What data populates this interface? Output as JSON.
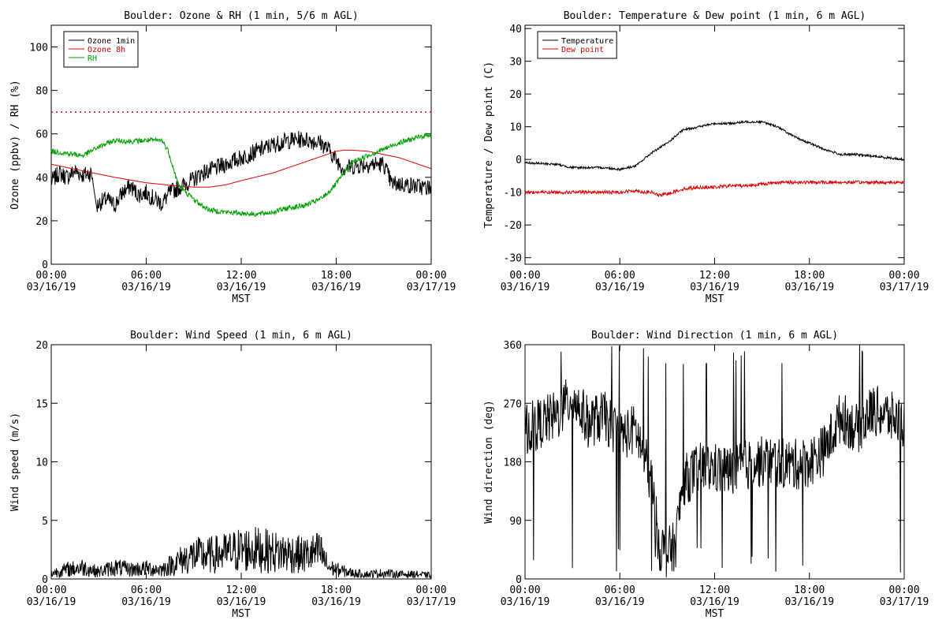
{
  "chart_data": [
    {
      "type": "line",
      "title": "Boulder: Ozone & RH (1 min, 5/6 m AGL)",
      "xlabel": "MST",
      "ylabel": "Ozone (ppbv) / RH (%)",
      "xlim": [
        "00:00 03/16/19",
        "00:00 03/17/19"
      ],
      "ylim": [
        0,
        110
      ],
      "y_ticks": [
        "0",
        "20",
        "40",
        "60",
        "80",
        "100"
      ],
      "x_ticks": [
        {
          "time": "00:00",
          "date": "03/16/19"
        },
        {
          "time": "06:00",
          "date": "03/16/19"
        },
        {
          "time": "12:00",
          "date": "03/16/19"
        },
        {
          "time": "18:00",
          "date": "03/16/19"
        },
        {
          "time": "00:00",
          "date": "03/17/19"
        }
      ],
      "legend": "top-left",
      "reference_line": {
        "y": 70,
        "color": "#dd0000",
        "style": "dotted"
      },
      "series": [
        {
          "name": "Ozone 1min",
          "color": "#000000",
          "points": [
            [
              0,
              38
            ],
            [
              0.5,
              42
            ],
            [
              1,
              40
            ],
            [
              1.5,
              43
            ],
            [
              2,
              41
            ],
            [
              2.5,
              42
            ],
            [
              2.7,
              38
            ],
            [
              2.8,
              25
            ],
            [
              3,
              28
            ],
            [
              3.5,
              30
            ],
            [
              4,
              27
            ],
            [
              4.5,
              33
            ],
            [
              5,
              36
            ],
            [
              5.5,
              32
            ],
            [
              6,
              33
            ],
            [
              6.5,
              30
            ],
            [
              7,
              28
            ],
            [
              7.5,
              33
            ],
            [
              8,
              35
            ],
            [
              8.5,
              37
            ],
            [
              9,
              39
            ],
            [
              9.5,
              42
            ],
            [
              10,
              43
            ],
            [
              11,
              46
            ],
            [
              12,
              49
            ],
            [
              13,
              52
            ],
            [
              14,
              55
            ],
            [
              15,
              57
            ],
            [
              16,
              57.5
            ],
            [
              17,
              56
            ],
            [
              17.5,
              53
            ],
            [
              18,
              48
            ],
            [
              18.5,
              44
            ],
            [
              19,
              45
            ],
            [
              20,
              46
            ],
            [
              21,
              46
            ],
            [
              21.5,
              37
            ],
            [
              22,
              37
            ],
            [
              23,
              36
            ],
            [
              24,
              35
            ]
          ]
        },
        {
          "name": "Ozone 8h",
          "color": "#dd0000",
          "points": [
            [
              0,
              46
            ],
            [
              2,
              43
            ],
            [
              4,
              40
            ],
            [
              6,
              37.5
            ],
            [
              8,
              36
            ],
            [
              9,
              35.5
            ],
            [
              10,
              35.5
            ],
            [
              11,
              36.5
            ],
            [
              12,
              38.5
            ],
            [
              14,
              42
            ],
            [
              16,
              47
            ],
            [
              18,
              52
            ],
            [
              18.5,
              52.5
            ],
            [
              19,
              52.5
            ],
            [
              20,
              52
            ],
            [
              22,
              49
            ],
            [
              24,
              44
            ]
          ]
        },
        {
          "name": "RH",
          "color": "#00a000",
          "points": [
            [
              0,
              52
            ],
            [
              1,
              51
            ],
            [
              2,
              50
            ],
            [
              3,
              54
            ],
            [
              4,
              57
            ],
            [
              5,
              56.5
            ],
            [
              6,
              57
            ],
            [
              7,
              57
            ],
            [
              7.4,
              52
            ],
            [
              7.8,
              42
            ],
            [
              8,
              37
            ],
            [
              8.5,
              33
            ],
            [
              9,
              30
            ],
            [
              9.5,
              27
            ],
            [
              10,
              25
            ],
            [
              11,
              24
            ],
            [
              12,
              23.5
            ],
            [
              13,
              23
            ],
            [
              14,
              24
            ],
            [
              15,
              26
            ],
            [
              16,
              27
            ],
            [
              17,
              30
            ],
            [
              17.5,
              33
            ],
            [
              18,
              37
            ],
            [
              18.5,
              42
            ],
            [
              19,
              47
            ],
            [
              20,
              50
            ],
            [
              21,
              53
            ],
            [
              22,
              56
            ],
            [
              23,
              58
            ],
            [
              24,
              60
            ]
          ]
        }
      ]
    },
    {
      "type": "line",
      "title": "Boulder: Temperature & Dew point (1 min, 6 m AGL)",
      "xlabel": "MST",
      "ylabel": "Temperature / Dew point (C)",
      "xlim": [
        "00:00 03/16/19",
        "00:00 03/17/19"
      ],
      "ylim": [
        -32,
        41
      ],
      "y_ticks": [
        "-30",
        "-20",
        "-10",
        "0",
        "10",
        "20",
        "30",
        "40"
      ],
      "x_ticks": [
        {
          "time": "00:00",
          "date": "03/16/19"
        },
        {
          "time": "06:00",
          "date": "03/16/19"
        },
        {
          "time": "12:00",
          "date": "03/16/19"
        },
        {
          "time": "18:00",
          "date": "03/16/19"
        },
        {
          "time": "00:00",
          "date": "03/17/19"
        }
      ],
      "legend": "top-left",
      "series": [
        {
          "name": "Temperature",
          "color": "#000000",
          "points": [
            [
              0,
              -1
            ],
            [
              2,
              -1.5
            ],
            [
              3,
              -2.5
            ],
            [
              4,
              -2.5
            ],
            [
              5,
              -2.5
            ],
            [
              6,
              -3
            ],
            [
              7,
              -2
            ],
            [
              7.5,
              0
            ],
            [
              8,
              2
            ],
            [
              9,
              5
            ],
            [
              10,
              9
            ],
            [
              11,
              10
            ],
            [
              12,
              11
            ],
            [
              13,
              11
            ],
            [
              14,
              11.5
            ],
            [
              15,
              11.5
            ],
            [
              16,
              10
            ],
            [
              17,
              7
            ],
            [
              18,
              5
            ],
            [
              19,
              3
            ],
            [
              20,
              1.5
            ],
            [
              21,
              1.5
            ],
            [
              22,
              1
            ],
            [
              23,
              0.5
            ],
            [
              24,
              0
            ]
          ]
        },
        {
          "name": "Dew point",
          "color": "#dd0000",
          "points": [
            [
              0,
              -10
            ],
            [
              2,
              -10
            ],
            [
              4,
              -10
            ],
            [
              6,
              -10
            ],
            [
              7,
              -9.5
            ],
            [
              7.5,
              -10
            ],
            [
              8,
              -10
            ],
            [
              8.5,
              -11
            ],
            [
              9,
              -10.5
            ],
            [
              10,
              -9
            ],
            [
              11,
              -8.5
            ],
            [
              12,
              -8.5
            ],
            [
              13,
              -8
            ],
            [
              14,
              -8
            ],
            [
              15,
              -7.5
            ],
            [
              16,
              -7
            ],
            [
              18,
              -7
            ],
            [
              20,
              -7
            ],
            [
              22,
              -7
            ],
            [
              24,
              -7
            ]
          ]
        }
      ]
    },
    {
      "type": "line",
      "title": "Boulder: Wind Speed (1 min, 6 m AGL)",
      "xlabel": "MST",
      "ylabel": "Wind speed (m/s)",
      "xlim": [
        "00:00 03/16/19",
        "00:00 03/17/19"
      ],
      "ylim": [
        0,
        20
      ],
      "y_ticks": [
        "0",
        "5",
        "10",
        "15",
        "20"
      ],
      "x_ticks": [
        {
          "time": "00:00",
          "date": "03/16/19"
        },
        {
          "time": "06:00",
          "date": "03/16/19"
        },
        {
          "time": "12:00",
          "date": "03/16/19"
        },
        {
          "time": "18:00",
          "date": "03/16/19"
        },
        {
          "time": "00:00",
          "date": "03/17/19"
        }
      ],
      "series": [
        {
          "color": "#000000",
          "points": [
            [
              0,
              0.5
            ],
            [
              1,
              0.8
            ],
            [
              2,
              1
            ],
            [
              3,
              0.6
            ],
            [
              4,
              1
            ],
            [
              5,
              0.8
            ],
            [
              6,
              0.9
            ],
            [
              7,
              0.8
            ],
            [
              8,
              1.5
            ],
            [
              9,
              2
            ],
            [
              10,
              2
            ],
            [
              11,
              2.2
            ],
            [
              12,
              2.5
            ],
            [
              13,
              2.5
            ],
            [
              14,
              2.3
            ],
            [
              15,
              2.2
            ],
            [
              16,
              2
            ],
            [
              17,
              2.3
            ],
            [
              17.5,
              1
            ],
            [
              18,
              0.8
            ],
            [
              19,
              0.5
            ],
            [
              20,
              0.4
            ],
            [
              21,
              0.5
            ],
            [
              22,
              0.4
            ],
            [
              23,
              0.4
            ],
            [
              24,
              0.3
            ]
          ]
        }
      ]
    },
    {
      "type": "line",
      "title": "Boulder: Wind Direction (1 min, 6 m AGL)",
      "xlabel": "MST",
      "ylabel": "Wind direction (deg)",
      "xlim": [
        "00:00 03/16/19",
        "00:00 03/17/19"
      ],
      "ylim": [
        0,
        360
      ],
      "y_ticks": [
        "0",
        "90",
        "180",
        "270",
        "360"
      ],
      "x_ticks": [
        {
          "time": "00:00",
          "date": "03/16/19"
        },
        {
          "time": "06:00",
          "date": "03/16/19"
        },
        {
          "time": "12:00",
          "date": "03/16/19"
        },
        {
          "time": "18:00",
          "date": "03/16/19"
        },
        {
          "time": "00:00",
          "date": "03/17/19"
        }
      ],
      "series": [
        {
          "color": "#000000",
          "points": [
            [
              0,
              230
            ],
            [
              1,
              240
            ],
            [
              2,
              250
            ],
            [
              3,
              280
            ],
            [
              4,
              240
            ],
            [
              5,
              250
            ],
            [
              6,
              220
            ],
            [
              7,
              230
            ],
            [
              8,
              150
            ],
            [
              8.5,
              50
            ],
            [
              9,
              40
            ],
            [
              9.5,
              50
            ],
            [
              10,
              150
            ],
            [
              11,
              170
            ],
            [
              12,
              170
            ],
            [
              13,
              165
            ],
            [
              14,
              175
            ],
            [
              15,
              180
            ],
            [
              16,
              180
            ],
            [
              17,
              175
            ],
            [
              18,
              180
            ],
            [
              19,
              200
            ],
            [
              20,
              250
            ],
            [
              21,
              230
            ],
            [
              22,
              260
            ],
            [
              23,
              250
            ],
            [
              24,
              240
            ]
          ]
        }
      ]
    }
  ]
}
